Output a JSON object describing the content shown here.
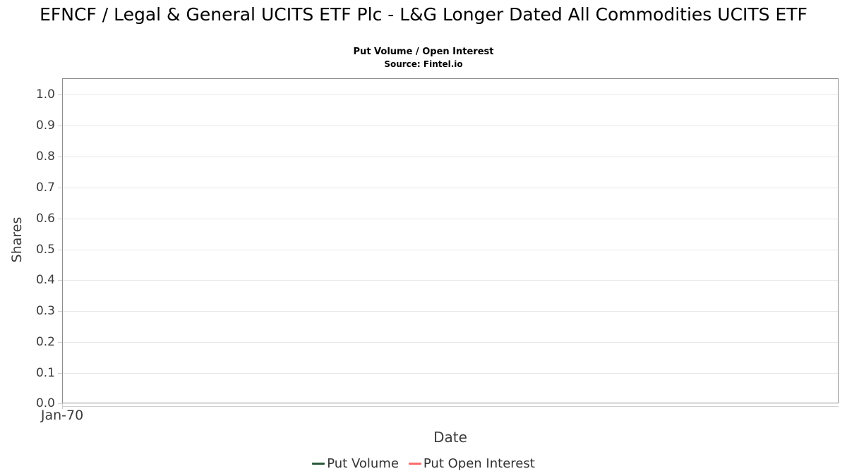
{
  "header": {
    "title": "EFNCF / Legal & General UCITS ETF Plc - L&G Longer Dated All Commodities UCITS ETF",
    "subtitle": "Put Volume / Open Interest",
    "source": "Source: Fintel.io"
  },
  "chart_data": {
    "type": "line",
    "title": "EFNCF / Legal & General UCITS ETF Plc - L&G Longer Dated All Commodities UCITS ETF",
    "subtitle": "Put Volume / Open Interest",
    "source": "Source: Fintel.io",
    "xlabel": "Date",
    "ylabel": "Shares",
    "x_tick_labels": [
      "Jan-70"
    ],
    "y_tick_values": [
      0.0,
      0.1,
      0.2,
      0.3,
      0.4,
      0.5,
      0.6,
      0.7,
      0.8,
      0.9,
      1.0
    ],
    "y_tick_labels": [
      "0.0",
      "0.1",
      "0.2",
      "0.3",
      "0.4",
      "0.5",
      "0.6",
      "0.7",
      "0.8",
      "0.9",
      "1.0"
    ],
    "ylim": [
      0.0,
      1.05
    ],
    "grid": true,
    "legend_position": "bottom",
    "series": [
      {
        "name": "Put Volume",
        "color": "#2c5a3c",
        "x": [],
        "values": []
      },
      {
        "name": "Put Open Interest",
        "color": "#fc6c6c",
        "x": [],
        "values": []
      }
    ]
  },
  "colors": {
    "put_volume": "#2c5a3c",
    "put_open_interest": "#fc6c6c",
    "grid": "#e7e7e7",
    "plot_border": "#8c8c8c",
    "tick": "#cccccc",
    "axis_text": "#3c3c3c",
    "legend_text": "#333333",
    "background": "#ffffff"
  }
}
